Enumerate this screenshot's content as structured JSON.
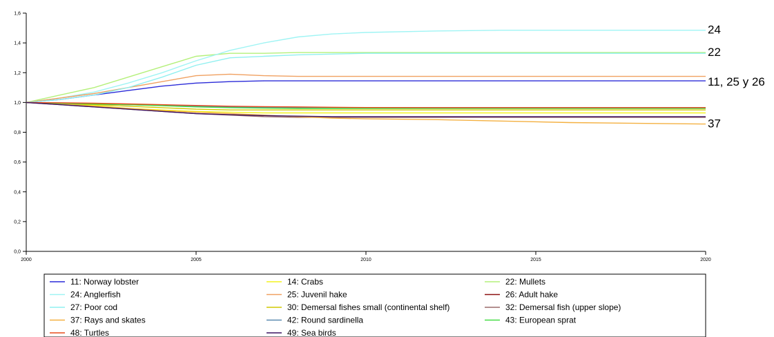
{
  "chart_data": {
    "type": "line",
    "xlim": [
      2000,
      2020
    ],
    "ylim": [
      0,
      1.6
    ],
    "x_ticks": [
      2000,
      2005,
      2010,
      2015,
      2020
    ],
    "y_ticks": [
      "0,0",
      "0,2",
      "0,4",
      "0,6",
      "0,8",
      "1,0",
      "1,2",
      "1,4",
      "1,6"
    ],
    "grid": false,
    "legend_position": "bottom",
    "annotations": [
      {
        "text": "24",
        "y": 1.49
      },
      {
        "text": "22",
        "y": 1.34
      },
      {
        "text": "11, 25 y 26",
        "y": 1.14
      },
      {
        "text": "37",
        "y": 0.86
      }
    ],
    "x": [
      2000,
      2001,
      2002,
      2003,
      2004,
      2005,
      2006,
      2007,
      2008,
      2009,
      2010,
      2012,
      2014,
      2016,
      2018,
      2020
    ],
    "series": [
      {
        "name": "11: Norway lobster",
        "color": "#2a2ad8",
        "values": [
          1.0,
          1.02,
          1.05,
          1.08,
          1.11,
          1.13,
          1.14,
          1.145,
          1.145,
          1.145,
          1.145,
          1.145,
          1.145,
          1.145,
          1.145,
          1.145
        ]
      },
      {
        "name": "14: Crabs",
        "color": "#f4f41e",
        "values": [
          1.0,
          0.99,
          0.98,
          0.96,
          0.95,
          0.94,
          0.935,
          0.93,
          0.93,
          0.93,
          0.93,
          0.93,
          0.93,
          0.93,
          0.93,
          0.93
        ]
      },
      {
        "name": "22: Mullets",
        "color": "#b4f07a",
        "values": [
          1.0,
          1.05,
          1.1,
          1.17,
          1.24,
          1.31,
          1.33,
          1.33,
          1.335,
          1.335,
          1.335,
          1.335,
          1.335,
          1.335,
          1.335,
          1.335
        ]
      },
      {
        "name": "24: Anglerfish",
        "color": "#9ff4f4",
        "values": [
          1.0,
          1.03,
          1.07,
          1.13,
          1.2,
          1.28,
          1.35,
          1.4,
          1.44,
          1.46,
          1.47,
          1.48,
          1.485,
          1.485,
          1.485,
          1.485
        ]
      },
      {
        "name": "25: Juvenil hake",
        "color": "#f0a060",
        "values": [
          1.0,
          1.03,
          1.06,
          1.1,
          1.14,
          1.18,
          1.19,
          1.18,
          1.175,
          1.175,
          1.175,
          1.175,
          1.175,
          1.175,
          1.175,
          1.175
        ]
      },
      {
        "name": "26: Adult hake",
        "color": "#8b1010",
        "values": [
          1.0,
          0.995,
          0.99,
          0.985,
          0.98,
          0.975,
          0.97,
          0.968,
          0.966,
          0.965,
          0.965,
          0.965,
          0.965,
          0.965,
          0.965,
          0.965
        ]
      },
      {
        "name": "27: Poor cod",
        "color": "#8ff0f0",
        "values": [
          1.0,
          1.02,
          1.05,
          1.1,
          1.17,
          1.25,
          1.3,
          1.31,
          1.32,
          1.325,
          1.33,
          1.33,
          1.33,
          1.33,
          1.33,
          1.33
        ]
      },
      {
        "name": "30: Demersal fishes small (continental shelf)",
        "color": "#d0c800",
        "values": [
          1.0,
          0.99,
          0.985,
          0.975,
          0.965,
          0.955,
          0.95,
          0.95,
          0.95,
          0.95,
          0.95,
          0.95,
          0.95,
          0.95,
          0.95,
          0.95
        ]
      },
      {
        "name": "32: Demersal fish (upper slope)",
        "color": "#9a6a6a",
        "values": [
          1.0,
          0.985,
          0.97,
          0.955,
          0.94,
          0.925,
          0.915,
          0.905,
          0.9,
          0.9,
          0.9,
          0.9,
          0.9,
          0.9,
          0.9,
          0.9
        ]
      },
      {
        "name": "37: Rays and skates",
        "color": "#f4b040",
        "values": [
          1.0,
          0.99,
          0.975,
          0.96,
          0.945,
          0.935,
          0.925,
          0.915,
          0.905,
          0.895,
          0.89,
          0.885,
          0.875,
          0.865,
          0.86,
          0.855
        ]
      },
      {
        "name": "42: Round sardinella",
        "color": "#5a8ab0",
        "values": [
          1.0,
          0.995,
          0.99,
          0.985,
          0.98,
          0.975,
          0.97,
          0.968,
          0.966,
          0.965,
          0.965,
          0.965,
          0.965,
          0.965,
          0.965,
          0.965
        ]
      },
      {
        "name": "43: European sprat",
        "color": "#44dd44",
        "values": [
          1.0,
          0.995,
          0.99,
          0.985,
          0.978,
          0.97,
          0.965,
          0.962,
          0.96,
          0.96,
          0.96,
          0.96,
          0.96,
          0.96,
          0.96,
          0.96
        ]
      },
      {
        "name": "48: Turtles",
        "color": "#e84a1a",
        "values": [
          1.0,
          0.998,
          0.995,
          0.99,
          0.985,
          0.98,
          0.975,
          0.972,
          0.97,
          0.968,
          0.966,
          0.965,
          0.965,
          0.965,
          0.965,
          0.965
        ]
      },
      {
        "name": "49: Sea birds",
        "color": "#3a1060",
        "values": [
          1.0,
          0.985,
          0.97,
          0.955,
          0.94,
          0.925,
          0.918,
          0.912,
          0.908,
          0.905,
          0.905,
          0.905,
          0.905,
          0.905,
          0.905,
          0.905
        ]
      }
    ]
  }
}
